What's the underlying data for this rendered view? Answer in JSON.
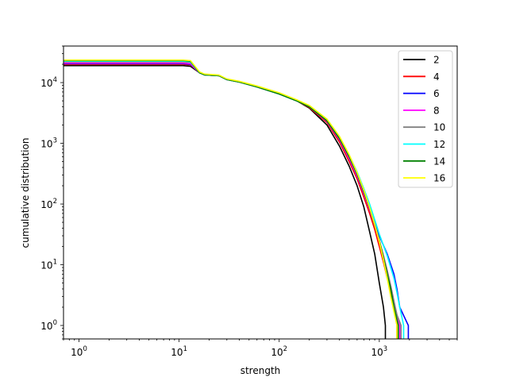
{
  "chart_data": {
    "type": "line",
    "title": "",
    "xlabel": "strength",
    "ylabel": "cumulative distribution",
    "xscale": "log",
    "yscale": "log",
    "xlim": [
      0.7,
      6000
    ],
    "ylim": [
      0.6,
      40000
    ],
    "grid": false,
    "legend_position": "top-right",
    "x_ticks": [
      {
        "value": 1,
        "mantissa": "10",
        "exp": "0"
      },
      {
        "value": 10,
        "mantissa": "10",
        "exp": "1"
      },
      {
        "value": 100,
        "mantissa": "10",
        "exp": "2"
      },
      {
        "value": 1000,
        "mantissa": "10",
        "exp": "3"
      }
    ],
    "y_ticks": [
      {
        "value": 1,
        "mantissa": "10",
        "exp": "0"
      },
      {
        "value": 10,
        "mantissa": "10",
        "exp": "1"
      },
      {
        "value": 100,
        "mantissa": "10",
        "exp": "2"
      },
      {
        "value": 1000,
        "mantissa": "10",
        "exp": "3"
      },
      {
        "value": 10000,
        "mantissa": "10",
        "exp": "4"
      }
    ],
    "series": [
      {
        "name": "2",
        "color": "#000000",
        "plateau": 19000,
        "end": 1650,
        "points": [
          [
            0.7,
            19000
          ],
          [
            11,
            19000
          ],
          [
            13,
            18500
          ],
          [
            16,
            14500
          ],
          [
            18,
            13400
          ],
          [
            25,
            13000
          ],
          [
            30,
            11200
          ],
          [
            40,
            10200
          ],
          [
            60,
            8500
          ],
          [
            100,
            6500
          ],
          [
            150,
            5000
          ],
          [
            200,
            3800
          ],
          [
            300,
            2000
          ],
          [
            400,
            900
          ],
          [
            500,
            420
          ],
          [
            600,
            200
          ],
          [
            700,
            90
          ],
          [
            800,
            35
          ],
          [
            900,
            15
          ],
          [
            1000,
            5
          ],
          [
            1100,
            2
          ],
          [
            1150,
            1
          ]
        ]
      },
      {
        "name": "4",
        "color": "#ff0000",
        "plateau": 20000,
        "end": 1800,
        "points": [
          [
            0.7,
            20000
          ],
          [
            11,
            20000
          ],
          [
            13,
            19500
          ],
          [
            16,
            14500
          ],
          [
            18,
            13400
          ],
          [
            25,
            13000
          ],
          [
            30,
            11200
          ],
          [
            40,
            10200
          ],
          [
            60,
            8500
          ],
          [
            100,
            6500
          ],
          [
            150,
            5000
          ],
          [
            200,
            3900
          ],
          [
            300,
            2200
          ],
          [
            400,
            1050
          ],
          [
            500,
            500
          ],
          [
            600,
            260
          ],
          [
            700,
            130
          ],
          [
            800,
            70
          ],
          [
            900,
            38
          ],
          [
            1000,
            20
          ],
          [
            1100,
            11
          ],
          [
            1200,
            6
          ],
          [
            1300,
            3.5
          ],
          [
            1400,
            2
          ],
          [
            1500,
            1
          ]
        ]
      },
      {
        "name": "6",
        "color": "#0000ff",
        "plateau": 20500,
        "end": 2000,
        "points": [
          [
            0.7,
            20500
          ],
          [
            11,
            20500
          ],
          [
            13,
            20000
          ],
          [
            16,
            14500
          ],
          [
            18,
            13400
          ],
          [
            25,
            13000
          ],
          [
            30,
            11200
          ],
          [
            40,
            10200
          ],
          [
            60,
            8500
          ],
          [
            100,
            6500
          ],
          [
            150,
            5000
          ],
          [
            200,
            4000
          ],
          [
            300,
            2300
          ],
          [
            400,
            1150
          ],
          [
            500,
            560
          ],
          [
            600,
            290
          ],
          [
            700,
            150
          ],
          [
            800,
            85
          ],
          [
            900,
            50
          ],
          [
            1000,
            30
          ],
          [
            1200,
            15
          ],
          [
            1400,
            7
          ],
          [
            1500,
            4
          ],
          [
            1600,
            2
          ],
          [
            1950,
            1
          ]
        ]
      },
      {
        "name": "8",
        "color": "#ff00ff",
        "plateau": 21000,
        "end": 1700,
        "points": [
          [
            0.7,
            21000
          ],
          [
            11,
            21000
          ],
          [
            13,
            20500
          ],
          [
            16,
            14500
          ],
          [
            18,
            13400
          ],
          [
            25,
            13000
          ],
          [
            30,
            11200
          ],
          [
            40,
            10200
          ],
          [
            60,
            8500
          ],
          [
            100,
            6500
          ],
          [
            150,
            5000
          ],
          [
            200,
            4000
          ],
          [
            300,
            2300
          ],
          [
            400,
            1150
          ],
          [
            500,
            560
          ],
          [
            600,
            290
          ],
          [
            700,
            150
          ],
          [
            800,
            80
          ],
          [
            900,
            45
          ],
          [
            1000,
            25
          ],
          [
            1100,
            14
          ],
          [
            1200,
            8
          ],
          [
            1300,
            4.5
          ],
          [
            1400,
            2.5
          ],
          [
            1500,
            1.5
          ],
          [
            1600,
            1
          ]
        ]
      },
      {
        "name": "10",
        "color": "#808080",
        "plateau": 22000,
        "end": 1750,
        "points": [
          [
            0.7,
            22000
          ],
          [
            11,
            22000
          ],
          [
            13,
            21500
          ],
          [
            16,
            14500
          ],
          [
            18,
            13400
          ],
          [
            25,
            13000
          ],
          [
            30,
            11200
          ],
          [
            40,
            10200
          ],
          [
            60,
            8500
          ],
          [
            100,
            6500
          ],
          [
            150,
            5000
          ],
          [
            200,
            4000
          ],
          [
            300,
            2350
          ],
          [
            400,
            1200
          ],
          [
            500,
            600
          ],
          [
            600,
            310
          ],
          [
            700,
            160
          ],
          [
            800,
            85
          ],
          [
            900,
            45
          ],
          [
            1000,
            25
          ],
          [
            1100,
            14
          ],
          [
            1200,
            8
          ],
          [
            1300,
            4.5
          ],
          [
            1400,
            2.5
          ],
          [
            1500,
            1.5
          ],
          [
            1650,
            1
          ]
        ]
      },
      {
        "name": "12",
        "color": "#00ffff",
        "plateau": 22500,
        "end": 1850,
        "points": [
          [
            0.7,
            22500
          ],
          [
            11,
            22500
          ],
          [
            13,
            22000
          ],
          [
            16,
            14500
          ],
          [
            18,
            13400
          ],
          [
            25,
            13000
          ],
          [
            30,
            11200
          ],
          [
            40,
            10200
          ],
          [
            60,
            8500
          ],
          [
            100,
            6500
          ],
          [
            150,
            5000
          ],
          [
            200,
            4100
          ],
          [
            300,
            2400
          ],
          [
            400,
            1250
          ],
          [
            500,
            640
          ],
          [
            600,
            340
          ],
          [
            700,
            180
          ],
          [
            800,
            100
          ],
          [
            900,
            55
          ],
          [
            1000,
            32
          ],
          [
            1200,
            14
          ],
          [
            1400,
            6
          ],
          [
            1500,
            3.5
          ],
          [
            1600,
            2
          ],
          [
            1750,
            1
          ]
        ]
      },
      {
        "name": "14",
        "color": "#008000",
        "plateau": 23000,
        "end": 1650,
        "points": [
          [
            0.7,
            23000
          ],
          [
            11,
            23000
          ],
          [
            13,
            22500
          ],
          [
            16,
            14500
          ],
          [
            18,
            13400
          ],
          [
            25,
            13000
          ],
          [
            30,
            11200
          ],
          [
            40,
            10200
          ],
          [
            60,
            8500
          ],
          [
            100,
            6500
          ],
          [
            150,
            5000
          ],
          [
            200,
            4000
          ],
          [
            300,
            2350
          ],
          [
            400,
            1200
          ],
          [
            500,
            600
          ],
          [
            600,
            310
          ],
          [
            700,
            160
          ],
          [
            800,
            85
          ],
          [
            900,
            45
          ],
          [
            1000,
            25
          ],
          [
            1100,
            13
          ],
          [
            1200,
            7
          ],
          [
            1300,
            4
          ],
          [
            1400,
            2
          ],
          [
            1550,
            1
          ]
        ]
      },
      {
        "name": "16",
        "color": "#ffff00",
        "plateau": 23500,
        "end": 1600,
        "points": [
          [
            0.7,
            23500
          ],
          [
            11,
            23500
          ],
          [
            13,
            23000
          ],
          [
            16,
            15000
          ],
          [
            18,
            13800
          ],
          [
            25,
            13300
          ],
          [
            30,
            11500
          ],
          [
            40,
            10500
          ],
          [
            60,
            8800
          ],
          [
            100,
            6800
          ],
          [
            150,
            5200
          ],
          [
            200,
            4200
          ],
          [
            300,
            2500
          ],
          [
            400,
            1300
          ],
          [
            500,
            650
          ],
          [
            600,
            330
          ],
          [
            700,
            170
          ],
          [
            800,
            88
          ],
          [
            900,
            46
          ],
          [
            1000,
            24
          ],
          [
            1100,
            12
          ],
          [
            1200,
            6
          ],
          [
            1300,
            3
          ],
          [
            1400,
            1.7
          ],
          [
            1500,
            1
          ]
        ]
      }
    ]
  }
}
